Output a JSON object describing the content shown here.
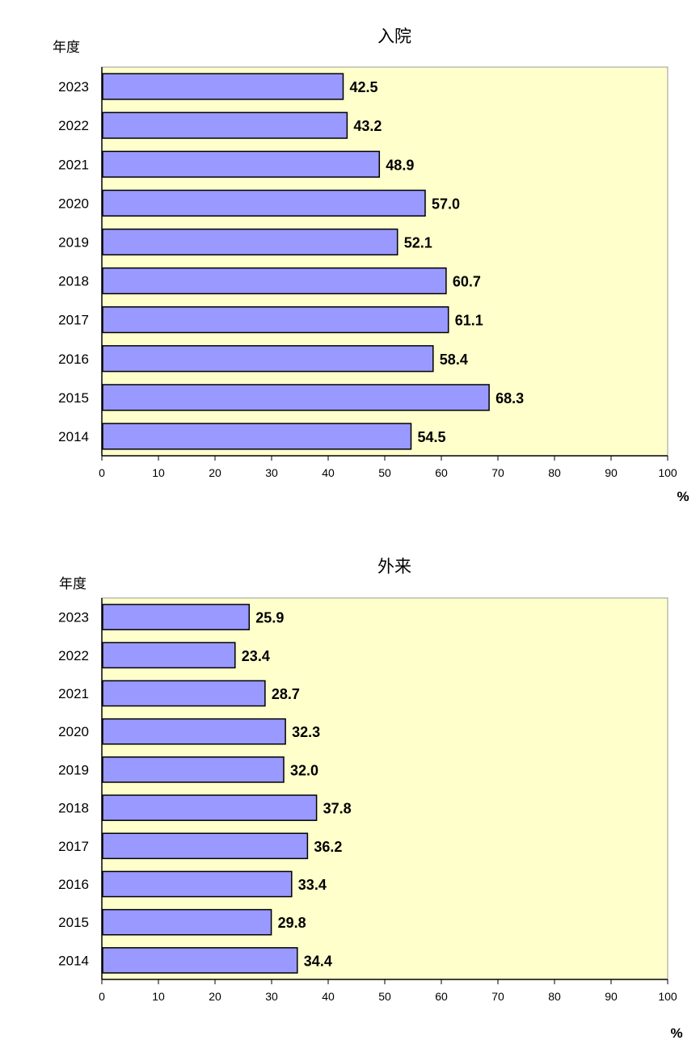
{
  "chart_data": [
    {
      "type": "bar",
      "orientation": "horizontal",
      "title": "入院",
      "ylabel": "年度",
      "xlabel": "%",
      "categories": [
        "2023",
        "2022",
        "2021",
        "2020",
        "2019",
        "2018",
        "2017",
        "2016",
        "2015",
        "2014"
      ],
      "values": [
        42.5,
        43.2,
        48.9,
        57.0,
        52.1,
        60.7,
        61.1,
        58.4,
        68.3,
        54.5
      ],
      "value_labels": [
        "42.5",
        "43.2",
        "48.9",
        "57.0",
        "52.1",
        "60.7",
        "61.1",
        "58.4",
        "68.3",
        "54.5"
      ],
      "xlim": [
        0,
        100
      ],
      "xticks": [
        "0",
        "10",
        "20",
        "30",
        "40",
        "50",
        "60",
        "70",
        "80",
        "90",
        "100"
      ],
      "grid": false,
      "colors": {
        "bar": "#9999ff",
        "plot_bg": "#ffffcc",
        "bar_border": "#000000"
      }
    },
    {
      "type": "bar",
      "orientation": "horizontal",
      "title": "外来",
      "ylabel": "年度",
      "xlabel": "%",
      "categories": [
        "2023",
        "2022",
        "2021",
        "2020",
        "2019",
        "2018",
        "2017",
        "2016",
        "2015",
        "2014"
      ],
      "values": [
        25.9,
        23.4,
        28.7,
        32.3,
        32.0,
        37.8,
        36.2,
        33.4,
        29.8,
        34.4
      ],
      "value_labels": [
        "25.9",
        "23.4",
        "28.7",
        "32.3",
        "32.0",
        "37.8",
        "36.2",
        "33.4",
        "29.8",
        "34.4"
      ],
      "xlim": [
        0,
        100
      ],
      "xticks": [
        "0",
        "10",
        "20",
        "30",
        "40",
        "50",
        "60",
        "70",
        "80",
        "90",
        "100"
      ],
      "grid": false,
      "colors": {
        "bar": "#9999ff",
        "plot_bg": "#ffffcc",
        "bar_border": "#000000"
      }
    }
  ]
}
